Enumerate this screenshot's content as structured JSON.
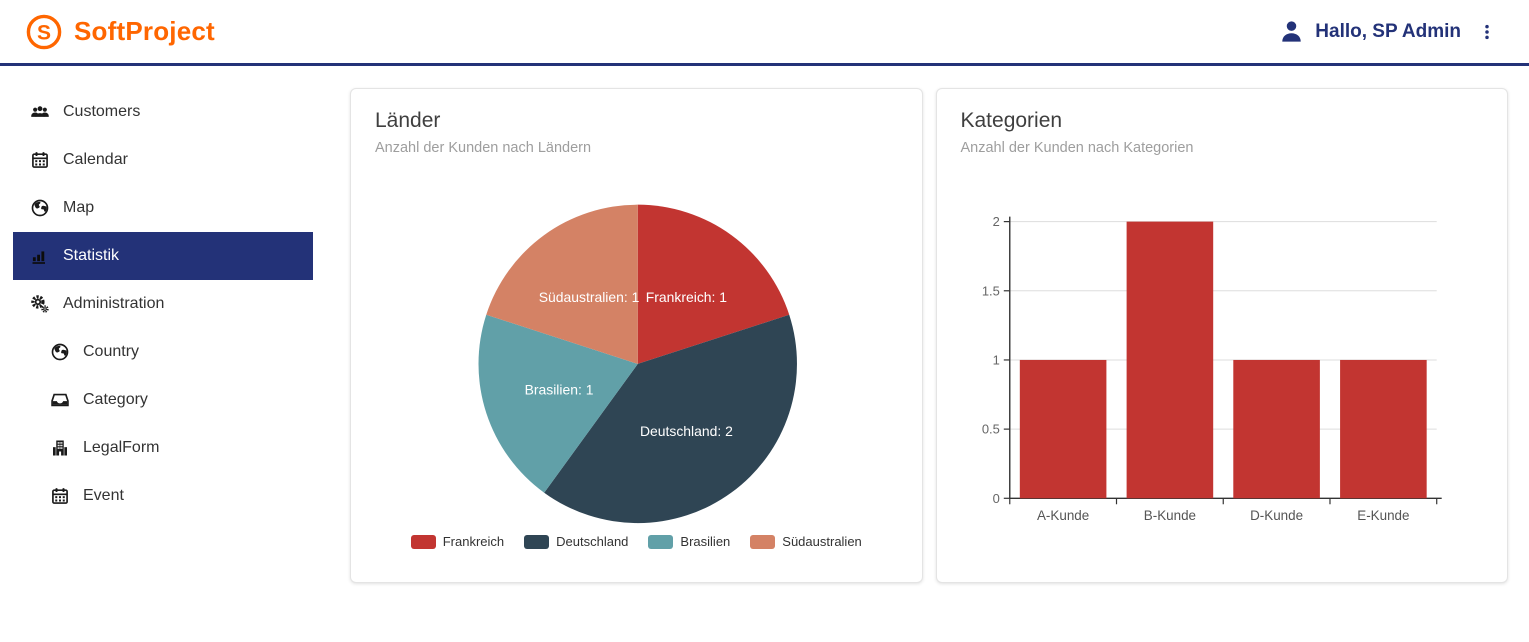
{
  "header": {
    "brand": "SoftProject",
    "logo_letter": "S",
    "user_greeting": "Hallo, SP Admin"
  },
  "sidebar": {
    "items": [
      {
        "label": "Customers",
        "icon": "users-icon",
        "level": 0,
        "active": false
      },
      {
        "label": "Calendar",
        "icon": "calendar-icon",
        "level": 0,
        "active": false
      },
      {
        "label": "Map",
        "icon": "globe-icon",
        "level": 0,
        "active": false
      },
      {
        "label": "Statistik",
        "icon": "bar-chart-icon",
        "level": 0,
        "active": true
      },
      {
        "label": "Administration",
        "icon": "gears-icon",
        "level": 0,
        "active": false
      },
      {
        "label": "Country",
        "icon": "globe-icon",
        "level": 1,
        "active": false
      },
      {
        "label": "Category",
        "icon": "tray-icon",
        "level": 1,
        "active": false
      },
      {
        "label": "LegalForm",
        "icon": "building-icon",
        "level": 1,
        "active": false
      },
      {
        "label": "Event",
        "icon": "calendar-icon",
        "level": 1,
        "active": false
      }
    ]
  },
  "colors": {
    "navy": "#233278",
    "orange": "#ff6600",
    "grid": "#dddddd",
    "axis": "#333333",
    "axis_label": "#666666"
  },
  "chart_data": [
    {
      "type": "pie",
      "title": "Länder",
      "subtitle": "Anzahl der Kunden nach Ländern",
      "labels": [
        "Frankreich",
        "Deutschland",
        "Brasilien",
        "Südaustralien"
      ],
      "values": [
        1,
        2,
        1,
        1
      ],
      "colors": [
        "#c23531",
        "#2f4554",
        "#61a0a8",
        "#d48265"
      ],
      "slice_labels": [
        "Frankreich: 1",
        "Deutschland: 2",
        "Brasilien: 1",
        "Südaustralien: 1"
      ],
      "legend": [
        "Frankreich",
        "Deutschland",
        "Brasilien",
        "Südaustralien"
      ],
      "legend_position": "bottom",
      "start_angle": "top",
      "direction": "clockwise"
    },
    {
      "type": "bar",
      "title": "Kategorien",
      "subtitle": "Anzahl der Kunden nach Kategorien",
      "categories": [
        "A-Kunde",
        "B-Kunde",
        "D-Kunde",
        "E-Kunde"
      ],
      "values": [
        1,
        2,
        1,
        1
      ],
      "bar_color": "#c23531",
      "xlabel": "",
      "ylabel": "",
      "ylim": [
        0,
        2
      ],
      "yticks": [
        0,
        0.5,
        1,
        1.5,
        2
      ],
      "grid": true,
      "legend_position": "none"
    }
  ]
}
